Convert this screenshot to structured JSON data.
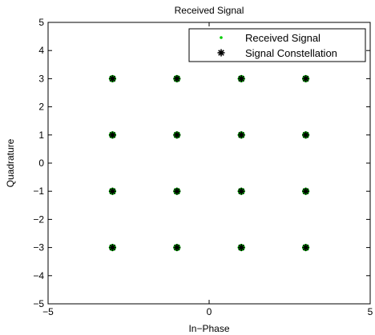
{
  "chart_data": {
    "type": "scatter",
    "title": "Received Signal",
    "xlabel": "In−Phase",
    "ylabel": "Quadrature",
    "xlim": [
      -5,
      5
    ],
    "ylim": [
      -5,
      5
    ],
    "xticks": [
      -5,
      0,
      5
    ],
    "yticks": [
      -5,
      -4,
      -3,
      -2,
      -1,
      0,
      1,
      2,
      3,
      4,
      5
    ],
    "grid": false,
    "legend_position": "top-right",
    "series": [
      {
        "name": "Received Signal",
        "marker": "dot",
        "color": "#00cc00",
        "points": [
          [
            -3,
            3
          ],
          [
            -1,
            3
          ],
          [
            1,
            3
          ],
          [
            3,
            3
          ],
          [
            -3,
            1
          ],
          [
            -1,
            1
          ],
          [
            1,
            1
          ],
          [
            3,
            1
          ],
          [
            -3,
            -1
          ],
          [
            -1,
            -1
          ],
          [
            1,
            -1
          ],
          [
            3,
            -1
          ],
          [
            -3,
            -3
          ],
          [
            -1,
            -3
          ],
          [
            1,
            -3
          ],
          [
            3,
            -3
          ]
        ]
      },
      {
        "name": "Signal Constellation",
        "marker": "asterisk",
        "color": "#000000",
        "points": [
          [
            -3,
            3
          ],
          [
            -1,
            3
          ],
          [
            1,
            3
          ],
          [
            3,
            3
          ],
          [
            -3,
            1
          ],
          [
            -1,
            1
          ],
          [
            1,
            1
          ],
          [
            3,
            1
          ],
          [
            -3,
            -1
          ],
          [
            -1,
            -1
          ],
          [
            1,
            -1
          ],
          [
            3,
            -1
          ],
          [
            -3,
            -3
          ],
          [
            -1,
            -3
          ],
          [
            1,
            -3
          ],
          [
            3,
            -3
          ]
        ]
      }
    ]
  }
}
